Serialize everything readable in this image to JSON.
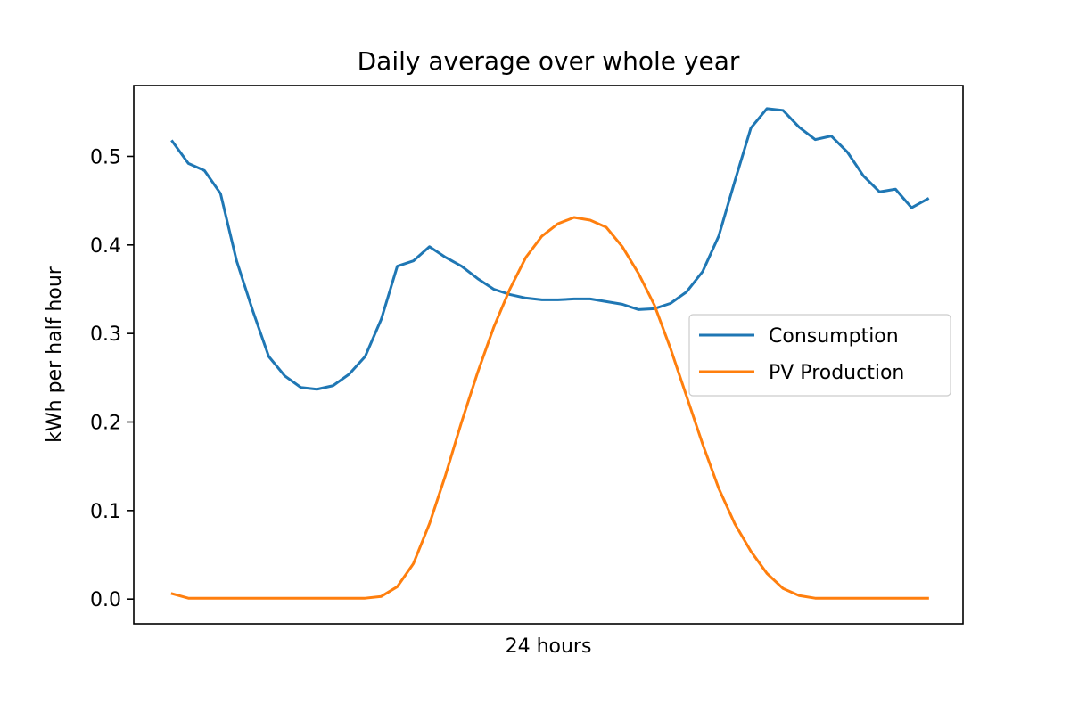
{
  "chart_data": {
    "type": "line",
    "title": "Daily average over whole year",
    "xlabel": "24 hours",
    "ylabel": "kWh per half hour",
    "ylim": [
      -0.028,
      0.58
    ],
    "yticks": [
      0.0,
      0.1,
      0.2,
      0.3,
      0.4,
      0.5
    ],
    "ytick_labels": [
      "0.0",
      "0.1",
      "0.2",
      "0.3",
      "0.4",
      "0.5"
    ],
    "x": [
      0,
      1,
      2,
      3,
      4,
      5,
      6,
      7,
      8,
      9,
      10,
      11,
      12,
      13,
      14,
      15,
      16,
      17,
      18,
      19,
      20,
      21,
      22,
      23,
      24,
      25,
      26,
      27,
      28,
      29,
      30,
      31,
      32,
      33,
      34,
      35,
      36,
      37,
      38,
      39,
      40,
      41,
      42,
      43,
      44,
      45,
      46,
      47
    ],
    "xlim": [
      -2.4,
      49.2
    ],
    "grid": false,
    "legend": {
      "position": "center-right"
    },
    "series": [
      {
        "name": "Consumption",
        "color": "#1f77b4",
        "values": [
          0.517,
          0.492,
          0.484,
          0.458,
          0.382,
          0.326,
          0.274,
          0.252,
          0.239,
          0.237,
          0.241,
          0.254,
          0.274,
          0.316,
          0.376,
          0.382,
          0.398,
          0.386,
          0.376,
          0.362,
          0.35,
          0.344,
          0.34,
          0.338,
          0.338,
          0.339,
          0.339,
          0.336,
          0.333,
          0.327,
          0.328,
          0.334,
          0.347,
          0.37,
          0.41,
          0.472,
          0.532,
          0.554,
          0.552,
          0.533,
          0.519,
          0.523,
          0.505,
          0.478,
          0.46,
          0.463,
          0.442,
          0.452
        ]
      },
      {
        "name": "PV Production",
        "color": "#ff7f0e",
        "values": [
          0.006,
          0.001,
          0.001,
          0.001,
          0.001,
          0.001,
          0.001,
          0.001,
          0.001,
          0.001,
          0.001,
          0.001,
          0.001,
          0.003,
          0.014,
          0.04,
          0.085,
          0.14,
          0.2,
          0.256,
          0.307,
          0.35,
          0.386,
          0.41,
          0.424,
          0.431,
          0.428,
          0.42,
          0.398,
          0.368,
          0.332,
          0.283,
          0.229,
          0.175,
          0.125,
          0.085,
          0.054,
          0.029,
          0.012,
          0.004,
          0.001,
          0.001,
          0.001,
          0.001,
          0.001,
          0.001,
          0.001,
          0.001
        ]
      }
    ]
  }
}
